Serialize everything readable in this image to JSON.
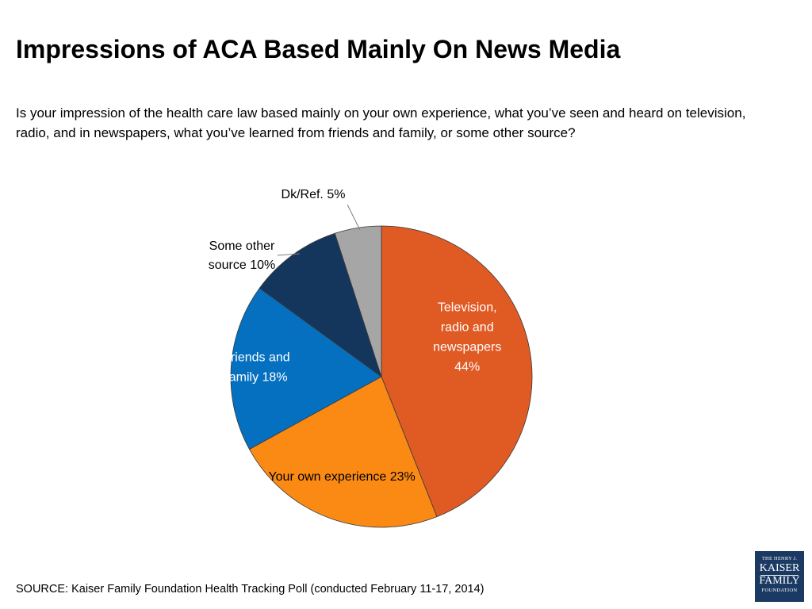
{
  "header": {
    "title": "Impressions of ACA Based Mainly On News Media",
    "question": "Is your impression of the health care law based mainly on your own experience, what you’ve seen and heard on television, radio, and in newspapers, what you’ve learned from friends and family, or some other source?"
  },
  "footer": {
    "source": "SOURCE: Kaiser Family Foundation Health Tracking Poll (conducted February 11-17, 2014)"
  },
  "logo": {
    "line1": "THE HENRY J.",
    "line2": "KAISER",
    "line3": "FAMILY",
    "line4": "FOUNDATION"
  },
  "chart_data": {
    "type": "pie",
    "start_angle_deg": 0,
    "direction": "clockwise",
    "legend": "none",
    "slices": [
      {
        "label": [
          "Television,",
          "radio and",
          "newspapers",
          "44%"
        ],
        "value": 44,
        "color": "#e05a24",
        "label_color": "#ffffff",
        "label_position": "inside"
      },
      {
        "label": [
          "Your own experience 23%"
        ],
        "value": 23,
        "color": "#fb8a14",
        "label_color": "#000000",
        "label_position": "inside"
      },
      {
        "label": [
          "Friends and",
          "family 18%"
        ],
        "value": 18,
        "color": "#0570c0",
        "label_color": "#ffffff",
        "label_position": "inside"
      },
      {
        "label": [
          "Some other",
          "source 10%"
        ],
        "value": 10,
        "color": "#14365c",
        "label_color": "#000000",
        "label_position": "outside"
      },
      {
        "label": [
          "Dk/Ref. 5%"
        ],
        "value": 5,
        "color": "#a6a6a6",
        "label_color": "#000000",
        "label_position": "outside"
      }
    ]
  }
}
